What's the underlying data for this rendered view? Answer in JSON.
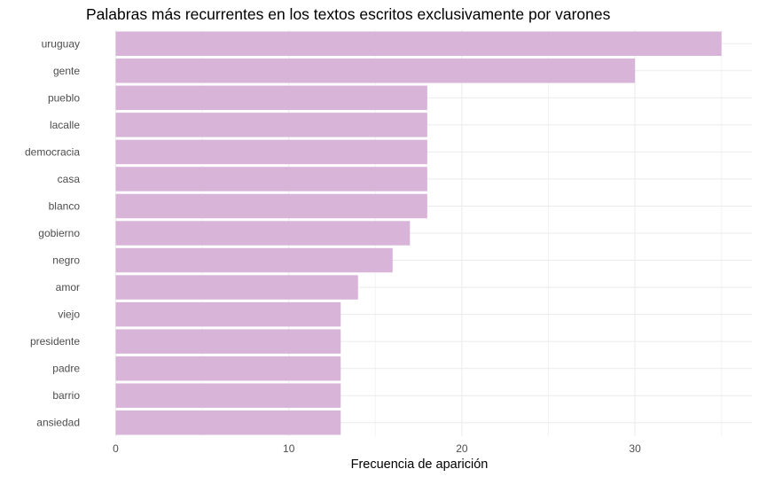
{
  "chart_data": {
    "type": "bar",
    "orientation": "horizontal",
    "title": "Palabras más recurrentes en los textos escritos exclusivamente por varones",
    "xlabel": "Frecuencia de aparición",
    "ylabel": "",
    "categories": [
      "uruguay",
      "gente",
      "pueblo",
      "lacalle",
      "democracia",
      "casa",
      "blanco",
      "gobierno",
      "negro",
      "amor",
      "viejo",
      "presidente",
      "padre",
      "barrio",
      "ansiedad"
    ],
    "values": [
      35,
      30,
      18,
      18,
      18,
      18,
      18,
      17,
      16,
      14,
      13,
      13,
      13,
      13,
      13
    ],
    "xlim": [
      0,
      35
    ],
    "xticks": [
      0,
      10,
      20,
      30
    ],
    "xtick_labels": [
      "0",
      "10",
      "20",
      "30"
    ],
    "grid": true,
    "legend": "none",
    "colors": {
      "bar": "#d8b4d9",
      "grid": "#ebebeb",
      "text": "#4d4d4d",
      "background": "#ffffff"
    }
  }
}
